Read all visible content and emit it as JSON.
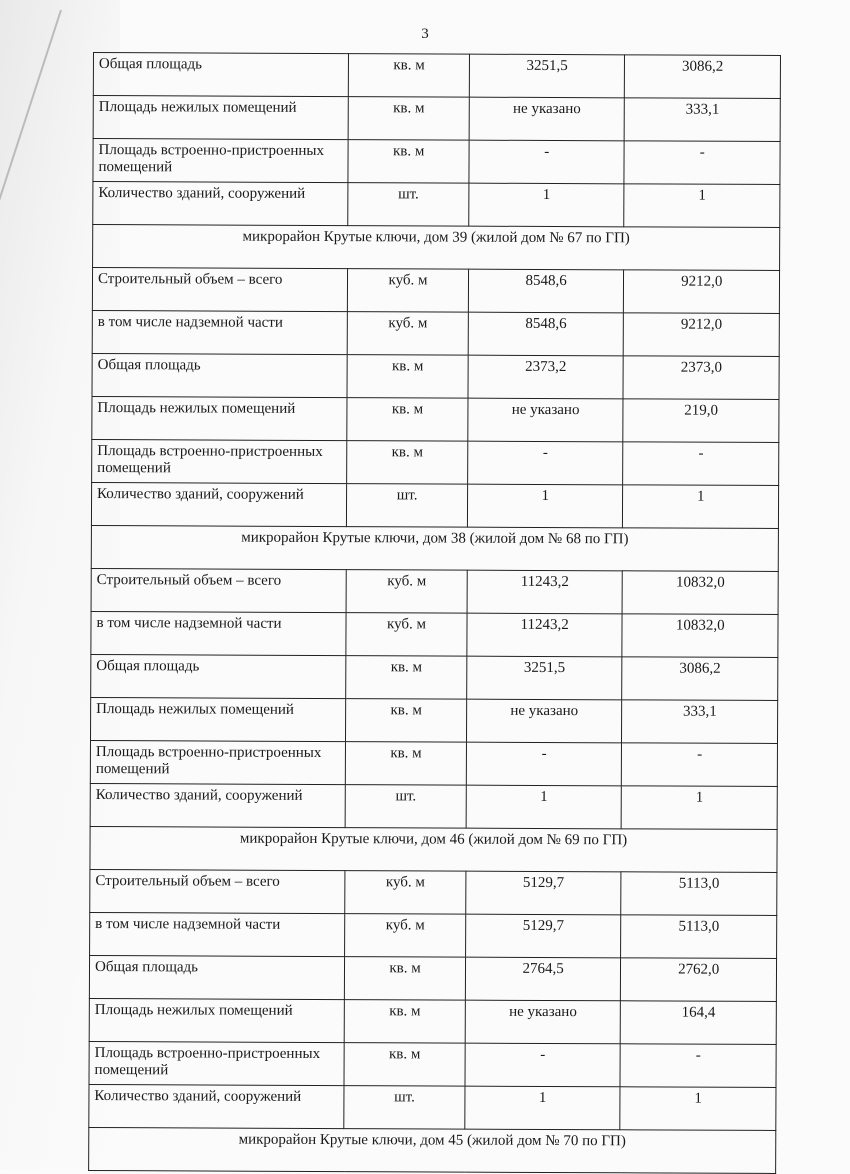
{
  "page_number": "3",
  "sections": [
    {
      "heading": "",
      "rows": [
        [
          "Общая площадь",
          "кв. м",
          "3251,5",
          "3086,2"
        ],
        [
          "Площадь нежилых помещений",
          "кв. м",
          "не указано",
          "333,1"
        ],
        [
          "Площадь встроенно-пристроенных помещений",
          "кв. м",
          "-",
          "-"
        ],
        [
          "Количество зданий, сооружений",
          "шт.",
          "1",
          "1"
        ]
      ]
    },
    {
      "heading": "микрорайон Крутые ключи, дом 39 (жилой дом № 67 по ГП)",
      "rows": [
        [
          "Строительный объем – всего",
          "куб. м",
          "8548,6",
          "9212,0"
        ],
        [
          "в том числе надземной части",
          "куб. м",
          "8548,6",
          "9212,0"
        ],
        [
          "Общая площадь",
          "кв. м",
          "2373,2",
          "2373,0"
        ],
        [
          "Площадь нежилых помещений",
          "кв. м",
          "не указано",
          "219,0"
        ],
        [
          "Площадь встроенно-пристроенных помещений",
          "кв. м",
          "-",
          "-"
        ],
        [
          "Количество зданий, сооружений",
          "шт.",
          "1",
          "1"
        ]
      ]
    },
    {
      "heading": "микрорайон Крутые ключи, дом 38 (жилой дом № 68 по ГП)",
      "rows": [
        [
          "Строительный объем – всего",
          "куб. м",
          "11243,2",
          "10832,0"
        ],
        [
          "в том числе надземной части",
          "куб. м",
          "11243,2",
          "10832,0"
        ],
        [
          "Общая площадь",
          "кв. м",
          "3251,5",
          "3086,2"
        ],
        [
          "Площадь нежилых помещений",
          "кв. м",
          "не указано",
          "333,1"
        ],
        [
          "Площадь встроенно-пристроенных помещений",
          "кв. м",
          "-",
          "-"
        ],
        [
          "Количество зданий, сооружений",
          "шт.",
          "1",
          "1"
        ]
      ]
    },
    {
      "heading": "микрорайон Крутые ключи, дом 46 (жилой дом № 69 по ГП)",
      "rows": [
        [
          "Строительный объем – всего",
          "куб. м",
          "5129,7",
          "5113,0"
        ],
        [
          "в том числе надземной части",
          "куб. м",
          "5129,7",
          "5113,0"
        ],
        [
          "Общая площадь",
          "кв. м",
          "2764,5",
          "2762,0"
        ],
        [
          "Площадь нежилых помещений",
          "кв. м",
          "не указано",
          "164,4"
        ],
        [
          "Площадь встроенно-пристроенных помещений",
          "кв. м",
          "-",
          "-"
        ],
        [
          "Количество зданий, сооружений",
          "шт.",
          "1",
          "1"
        ]
      ]
    },
    {
      "heading": "микрорайон Крутые ключи, дом 45 (жилой дом № 70 по ГП)",
      "rows": []
    }
  ]
}
